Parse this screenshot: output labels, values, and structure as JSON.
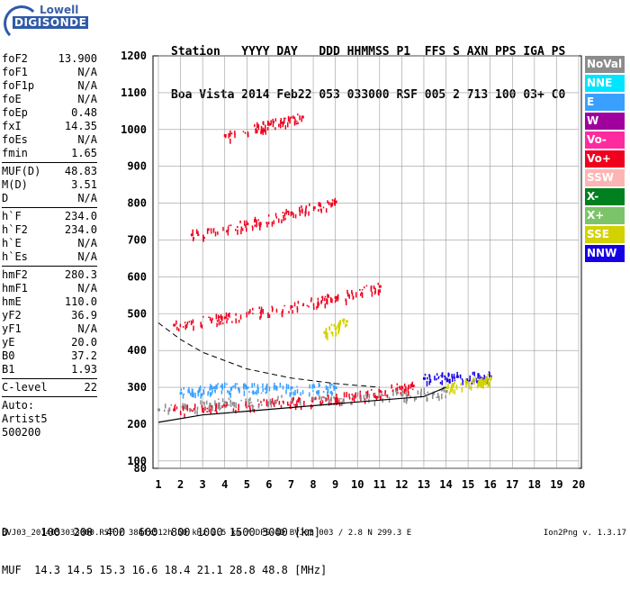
{
  "logo": {
    "line1": "Lowell",
    "line2": "DIGISONDE"
  },
  "header": {
    "row1": "Station   YYYY DAY   DDD HHMMSS P1  FFS S AXN PPS IGA PS",
    "row2": "Boa Vista 2014 Feb22 053 033000 RSF 005 2 713 100 03+ C0"
  },
  "params": [
    {
      "k": "foF2",
      "v": "13.900"
    },
    {
      "k": "foF1",
      "v": "N/A"
    },
    {
      "k": "foF1p",
      "v": "N/A"
    },
    {
      "k": "foE",
      "v": "N/A"
    },
    {
      "k": "foEp",
      "v": "0.48"
    },
    {
      "k": "fxI",
      "v": "14.35"
    },
    {
      "k": "foEs",
      "v": "N/A"
    },
    {
      "k": "fmin",
      "v": "1.65"
    },
    {
      "sep": true
    },
    {
      "k": "MUF(D)",
      "v": "48.83"
    },
    {
      "k": "M(D)",
      "v": "3.51"
    },
    {
      "k": "D",
      "v": "N/A"
    },
    {
      "sep": true
    },
    {
      "k": "h`F",
      "v": "234.0"
    },
    {
      "k": "h`F2",
      "v": "234.0"
    },
    {
      "k": "h`E",
      "v": "N/A"
    },
    {
      "k": "h`Es",
      "v": "N/A"
    },
    {
      "sep": true
    },
    {
      "k": "hmF2",
      "v": "280.3"
    },
    {
      "k": "hmF1",
      "v": "N/A"
    },
    {
      "k": "hmE",
      "v": "110.0"
    },
    {
      "k": "yF2",
      "v": "36.9"
    },
    {
      "k": "yF1",
      "v": "N/A"
    },
    {
      "k": "yE",
      "v": "20.0"
    },
    {
      "k": "B0",
      "v": "37.2"
    },
    {
      "k": "B1",
      "v": "1.93"
    },
    {
      "sep": true
    },
    {
      "k": "C-level",
      "v": "22"
    },
    {
      "sep": true
    },
    {
      "text": "Auto:"
    },
    {
      "text": "Artist5"
    },
    {
      "text": "500200"
    }
  ],
  "legend": [
    {
      "label": "NoVal",
      "color": "#8c8c8c"
    },
    {
      "label": "NNE",
      "color": "#00e5ff"
    },
    {
      "label": "E",
      "color": "#3aa0ff"
    },
    {
      "label": "W",
      "color": "#a0009e"
    },
    {
      "label": "Vo-",
      "color": "#ff2aa0"
    },
    {
      "label": "Vo+",
      "color": "#f0001e"
    },
    {
      "label": "SSW",
      "color": "#ffb4b4"
    },
    {
      "label": "X-",
      "color": "#00801e"
    },
    {
      "label": "X+",
      "color": "#7cc46a"
    },
    {
      "label": "SSE",
      "color": "#d2d200"
    },
    {
      "label": "NNW",
      "color": "#1400e6"
    }
  ],
  "muf_table": {
    "row1": "D     100  200  400  600  800 1000 1500 3000 [km]",
    "row2": "MUF  14.3 14.5 15.3 16.6 18.4 21.1 28.8 48.8 [MHz]"
  },
  "footer": "BVJ03_2014053033000.RSF / 384fx512h 50 kHz 2.5 km / DPS-4D BVJ03 003 / 2.8 N 299.3 E",
  "version": "Ion2Png v. 1.3.17",
  "chart_data": {
    "type": "scatter",
    "title": "",
    "xlabel": "",
    "ylabel": "",
    "xlim": [
      1,
      20
    ],
    "ylim": [
      80,
      1200
    ],
    "xticks": [
      1,
      2,
      3,
      4,
      5,
      6,
      7,
      8,
      9,
      10,
      11,
      12,
      13,
      14,
      15,
      16,
      17,
      18,
      19,
      20
    ],
    "yticks": [
      80,
      100,
      200,
      300,
      400,
      500,
      600,
      700,
      800,
      900,
      1000,
      1100,
      1200
    ],
    "grid": true,
    "legend_position": "right",
    "series": [
      {
        "legend": "E",
        "color": "#3aa0ff",
        "x": [
          2.0,
          3.5,
          5.0,
          7.0,
          9.0
        ],
        "y": [
          285,
          300,
          300,
          300,
          300
        ]
      },
      {
        "legend": "Vo+",
        "color": "#f0001e",
        "x": [
          1.7,
          4.0,
          7.0,
          9.0,
          11.0,
          12.5
        ],
        "y": [
          240,
          250,
          260,
          270,
          290,
          305
        ]
      },
      {
        "legend": "Vo+",
        "color": "#f0001e",
        "x": [
          1.7,
          4.0,
          7.0,
          9.0,
          11.0
        ],
        "y": [
          470,
          490,
          520,
          545,
          575
        ]
      },
      {
        "legend": "Vo+",
        "color": "#f0001e",
        "x": [
          2.5,
          5.0,
          7.0,
          9.0
        ],
        "y": [
          715,
          745,
          775,
          805
        ]
      },
      {
        "legend": "Vo+",
        "color": "#f0001e",
        "x": [
          4.0,
          6.0,
          7.5
        ],
        "y": [
          985,
          1015,
          1035
        ]
      },
      {
        "legend": "NNW",
        "color": "#1400e6",
        "x": [
          13.0,
          14.5,
          16.0
        ],
        "y": [
          325,
          330,
          330
        ]
      },
      {
        "legend": "SSE",
        "color": "#d2d200",
        "x": [
          14.0,
          15.5,
          16.0
        ],
        "y": [
          300,
          320,
          325
        ]
      },
      {
        "legend": "SSE",
        "color": "#d2d200",
        "x": [
          8.5,
          9.5
        ],
        "y": [
          450,
          480
        ]
      },
      {
        "legend": "NoVal",
        "color": "#8c8c8c",
        "x": [
          1.0,
          4.0,
          8.0,
          12.0,
          14.0
        ],
        "y": [
          240,
          260,
          270,
          280,
          290
        ]
      }
    ],
    "profile_curve": {
      "x": [
        1,
        3,
        5,
        7,
        9,
        11,
        13,
        14
      ],
      "y": [
        205,
        225,
        235,
        245,
        255,
        265,
        275,
        300
      ]
    },
    "dashed_curve": {
      "x": [
        1,
        2,
        3,
        5,
        7,
        9,
        11
      ],
      "y": [
        475,
        430,
        395,
        350,
        325,
        310,
        300
      ]
    }
  }
}
